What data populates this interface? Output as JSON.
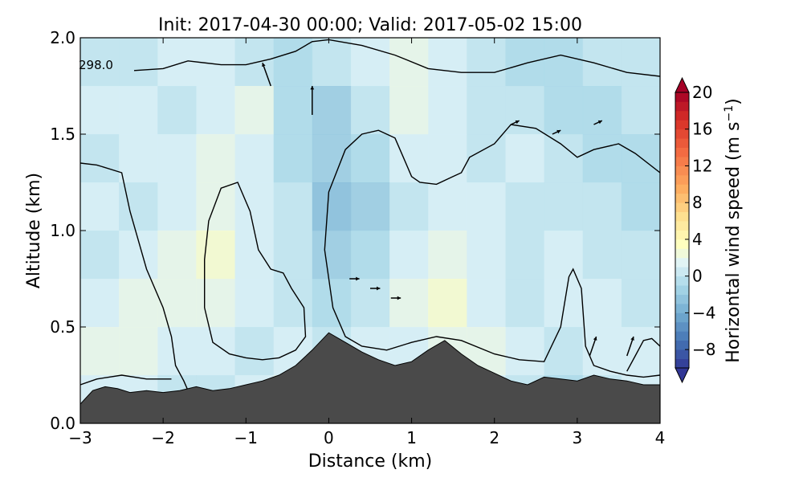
{
  "chart_data": {
    "type": "heatmap",
    "title": "Init: 2017-04-30 00:00; Valid: 2017-05-02 15:00",
    "xlabel": "Distance (km)",
    "ylabel": "Altitude (km)",
    "xlim": [
      -3,
      4
    ],
    "ylim": [
      0,
      2
    ],
    "xticks": [
      -3,
      -2,
      -1,
      0,
      1,
      2,
      3,
      4
    ],
    "xtick_labels": [
      "−3",
      "−2",
      "−1",
      "0",
      "1",
      "2",
      "3",
      "4"
    ],
    "yticks": [
      0.0,
      0.5,
      1.0,
      1.5,
      2.0
    ],
    "ytick_labels": [
      "0.0",
      "0.5",
      "1.0",
      "1.5",
      "2.0"
    ],
    "contour_label": "298.0",
    "colorbar": {
      "label": "Horizontal wind speed (m s",
      "label_superscript": "−1",
      "label_close": ")",
      "vmin": -10,
      "vmax": 20,
      "extend": "both",
      "ticks": [
        -8,
        -4,
        0,
        4,
        8,
        12,
        16,
        20
      ],
      "tick_labels": [
        "−8",
        "−4",
        "0",
        "4",
        "8",
        "12",
        "16",
        "20"
      ]
    },
    "terrain": {
      "x": [
        -3.0,
        -2.85,
        -2.7,
        -2.55,
        -2.4,
        -2.2,
        -2.0,
        -1.8,
        -1.6,
        -1.4,
        -1.2,
        -1.0,
        -0.8,
        -0.6,
        -0.4,
        -0.2,
        0.0,
        0.2,
        0.4,
        0.6,
        0.8,
        1.0,
        1.2,
        1.4,
        1.6,
        1.8,
        2.0,
        2.2,
        2.4,
        2.6,
        2.8,
        3.0,
        3.2,
        3.4,
        3.6,
        3.8,
        4.0
      ],
      "y": [
        0.1,
        0.17,
        0.19,
        0.18,
        0.16,
        0.17,
        0.16,
        0.17,
        0.19,
        0.17,
        0.18,
        0.2,
        0.22,
        0.25,
        0.3,
        0.38,
        0.47,
        0.42,
        0.37,
        0.33,
        0.3,
        0.32,
        0.38,
        0.43,
        0.36,
        0.3,
        0.26,
        0.22,
        0.2,
        0.24,
        0.23,
        0.22,
        0.25,
        0.23,
        0.22,
        0.2,
        0.2
      ]
    },
    "contours": [
      {
        "x": [
          -2.35,
          -2.0,
          -1.7,
          -1.3,
          -1.0,
          -0.7,
          -0.4,
          -0.2,
          0.0,
          0.4,
          0.8,
          1.2,
          1.6,
          2.0,
          2.4,
          2.8,
          3.2,
          3.6,
          4.0
        ],
        "y": [
          1.83,
          1.84,
          1.88,
          1.86,
          1.86,
          1.89,
          1.93,
          1.98,
          1.99,
          1.96,
          1.91,
          1.84,
          1.82,
          1.82,
          1.87,
          1.91,
          1.87,
          1.82,
          1.8
        ]
      },
      {
        "x": [
          -3.0,
          -2.8,
          -2.5,
          -2.4,
          -2.2,
          -2.0,
          -1.9,
          -1.85,
          -1.75,
          -1.7,
          -1.6
        ],
        "y": [
          1.35,
          1.34,
          1.3,
          1.1,
          0.8,
          0.6,
          0.45,
          0.3,
          0.22,
          0.17,
          0.17
        ]
      },
      {
        "x": [
          -3.0,
          -2.8,
          -2.5,
          -2.2,
          -1.9
        ],
        "y": [
          0.2,
          0.23,
          0.25,
          0.23,
          0.23
        ]
      },
      {
        "x": [
          -1.5,
          -1.5,
          -1.45,
          -1.3,
          -1.1,
          -0.95,
          -0.85,
          -0.7,
          -0.55,
          -0.45,
          -0.3,
          -0.28,
          -0.4,
          -0.6,
          -0.8,
          -1.0,
          -1.2,
          -1.4,
          -1.5
        ],
        "y": [
          0.6,
          0.85,
          1.05,
          1.22,
          1.25,
          1.1,
          0.9,
          0.8,
          0.78,
          0.7,
          0.6,
          0.45,
          0.38,
          0.34,
          0.33,
          0.34,
          0.36,
          0.42,
          0.6
        ]
      },
      {
        "x": [
          4.0,
          3.7,
          3.5,
          3.2,
          3.0,
          2.8,
          2.5,
          2.2,
          2.0,
          1.7,
          1.6,
          1.5,
          1.3,
          1.1,
          1.0,
          0.9,
          0.8,
          0.6,
          0.4,
          0.2,
          0.0,
          -0.05,
          0.05,
          0.2,
          0.4,
          0.7,
          1.0,
          1.3,
          1.6,
          2.0,
          2.3,
          2.6,
          2.8,
          2.9,
          2.95,
          3.05,
          3.1,
          3.2,
          3.4,
          3.6,
          3.8,
          4.0
        ],
        "y": [
          1.3,
          1.4,
          1.45,
          1.42,
          1.38,
          1.45,
          1.53,
          1.55,
          1.45,
          1.38,
          1.3,
          1.28,
          1.24,
          1.25,
          1.28,
          1.38,
          1.48,
          1.52,
          1.5,
          1.42,
          1.2,
          0.9,
          0.6,
          0.45,
          0.4,
          0.38,
          0.42,
          0.45,
          0.43,
          0.36,
          0.33,
          0.32,
          0.5,
          0.76,
          0.8,
          0.7,
          0.4,
          0.3,
          0.27,
          0.25,
          0.24,
          0.25
        ]
      },
      {
        "x": [
          3.6,
          3.7,
          3.8,
          3.9,
          4.0
        ],
        "y": [
          0.27,
          0.35,
          0.43,
          0.44,
          0.4
        ]
      }
    ],
    "wind_field_note": "",
    "wind_cells": [
      [
        0,
        0,
        1,
        1,
        0,
        -1,
        0,
        1,
        2,
        1,
        0,
        -1,
        -1,
        0,
        0
      ],
      [
        1,
        1,
        0,
        1,
        2,
        -1,
        -2,
        0,
        2,
        1,
        0,
        0,
        -1,
        -1,
        0
      ],
      [
        0,
        1,
        1,
        2,
        1,
        -1,
        -2,
        -1,
        1,
        1,
        0,
        1,
        0,
        -1,
        -1
      ],
      [
        1,
        0,
        1,
        2,
        1,
        0,
        -3,
        -2,
        0,
        1,
        1,
        0,
        0,
        0,
        -1
      ],
      [
        0,
        1,
        2,
        3,
        1,
        0,
        -2,
        -1,
        1,
        2,
        1,
        0,
        1,
        0,
        0
      ],
      [
        1,
        2,
        2,
        2,
        1,
        0,
        -1,
        0,
        2,
        3,
        1,
        0,
        1,
        1,
        0
      ],
      [
        2,
        2,
        1,
        1,
        0,
        1,
        0,
        1,
        1,
        2,
        2,
        1,
        0,
        1,
        1
      ],
      [
        1,
        1,
        0,
        0,
        1,
        2,
        1,
        0,
        -1,
        0,
        1,
        0,
        -1,
        0,
        1
      ]
    ],
    "wind_vectors": [
      {
        "x": -0.7,
        "y": 1.75,
        "dx": -0.1,
        "dy": 0.12
      },
      {
        "x": -0.2,
        "y": 1.6,
        "dx": 0.0,
        "dy": 0.15
      },
      {
        "x": 0.25,
        "y": 0.75,
        "dx": 0.12,
        "dy": 0.0
      },
      {
        "x": 0.5,
        "y": 0.7,
        "dx": 0.12,
        "dy": 0.0
      },
      {
        "x": 0.75,
        "y": 0.65,
        "dx": 0.12,
        "dy": 0.0
      },
      {
        "x": 2.2,
        "y": 1.55,
        "dx": 0.1,
        "dy": 0.02
      },
      {
        "x": 2.7,
        "y": 1.5,
        "dx": 0.1,
        "dy": 0.02
      },
      {
        "x": 3.2,
        "y": 1.55,
        "dx": 0.1,
        "dy": 0.02
      },
      {
        "x": 3.15,
        "y": 0.35,
        "dx": 0.08,
        "dy": 0.1
      },
      {
        "x": 3.6,
        "y": 0.35,
        "dx": 0.08,
        "dy": 0.1
      }
    ]
  }
}
